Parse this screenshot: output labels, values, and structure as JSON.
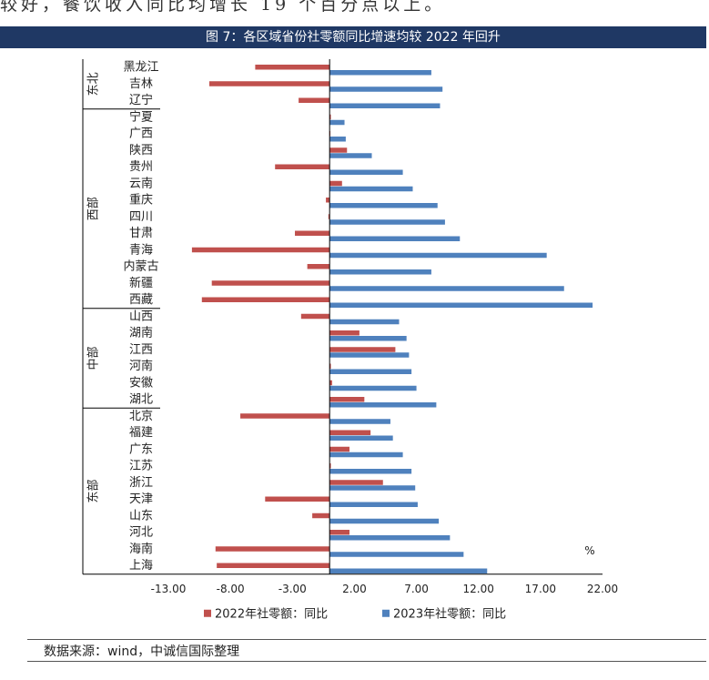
{
  "top_text": "较好，餐饮收入同比均增长 19 个百分点以上。",
  "chart_title": "图 7：各区域省份社零额同比增速均较 2022 年回升",
  "source": "数据来源：wind，中诚信国际整理",
  "colors": {
    "title_bg": "#1f3864",
    "series_2022": "#c0504d",
    "series_2023": "#4f81bd"
  },
  "chart_data": {
    "type": "bar",
    "orientation": "horizontal",
    "unit": "%",
    "xlim": [
      -13,
      22
    ],
    "xticks": [
      "-13.00",
      "-8.00",
      "-3.00",
      "2.00",
      "7.00",
      "12.00",
      "17.00",
      "22.00"
    ],
    "categories": [
      "黑龙江",
      "吉林",
      "辽宁",
      "宁夏",
      "广西",
      "陕西",
      "贵州",
      "云南",
      "重庆",
      "四川",
      "甘肃",
      "青海",
      "内蒙古",
      "新疆",
      "西藏",
      "山西",
      "湖南",
      "江西",
      "河南",
      "安徽",
      "湖北",
      "北京",
      "福建",
      "广东",
      "江苏",
      "浙江",
      "天津",
      "山东",
      "河北",
      "海南",
      "上海"
    ],
    "groups": [
      {
        "name": "东北",
        "count": 3
      },
      {
        "name": "西部",
        "count": 12
      },
      {
        "name": "中部",
        "count": 6
      },
      {
        "name": "东部",
        "count": 10
      }
    ],
    "series": [
      {
        "name": "2022年社零额：同比",
        "values": [
          -6.0,
          -9.7,
          -2.5,
          0.1,
          0.0,
          1.4,
          -4.4,
          1.0,
          -0.3,
          -0.1,
          -2.8,
          -11.1,
          -1.8,
          -9.5,
          -10.3,
          -2.3,
          2.4,
          5.3,
          0.1,
          0.2,
          2.8,
          -7.2,
          3.3,
          1.6,
          0.1,
          4.3,
          -5.2,
          -1.4,
          1.6,
          -9.2,
          -9.1
        ]
      },
      {
        "name": "2023年社零额：同比",
        "values": [
          8.2,
          9.1,
          8.9,
          1.2,
          1.3,
          3.4,
          5.9,
          6.7,
          8.7,
          9.3,
          10.5,
          17.5,
          8.2,
          18.9,
          21.2,
          5.6,
          6.2,
          6.4,
          6.6,
          7.0,
          8.6,
          4.9,
          5.1,
          5.9,
          6.6,
          6.9,
          7.1,
          8.8,
          9.7,
          10.8,
          12.7
        ]
      }
    ]
  }
}
